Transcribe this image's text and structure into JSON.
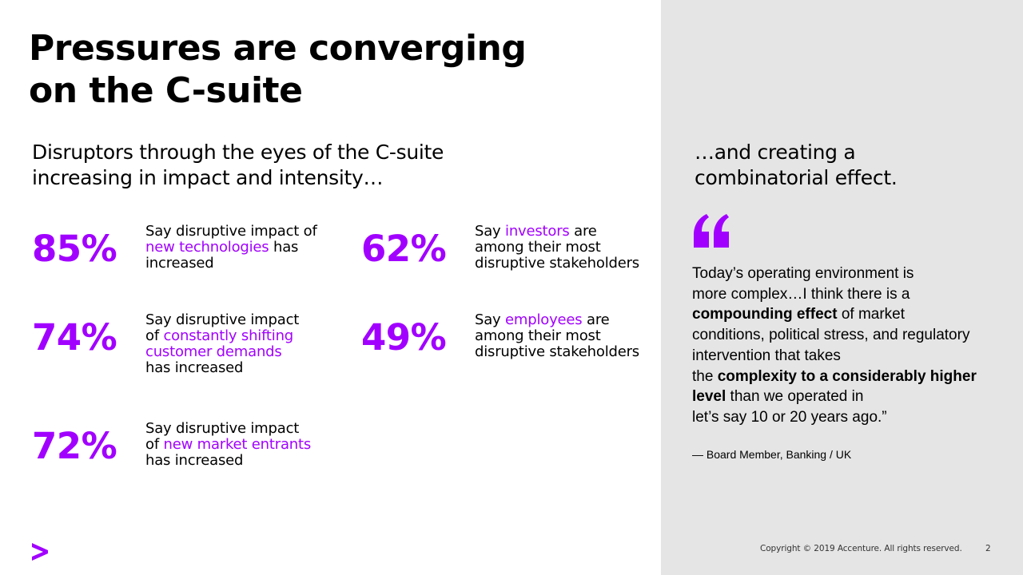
{
  "colors": {
    "accent": "#a100ff",
    "panel": "#e5e5e5"
  },
  "title": "Pressures are converging\non the C-suite",
  "subtitle": "Disruptors through the eyes of the C-suite\nincreasing in impact and intensity…",
  "stats": [
    {
      "pct": "85%",
      "pre": "Say disruptive impact of\n",
      "hl": "new technologies",
      "post": " has\nincreased"
    },
    {
      "pct": "74%",
      "pre": "Say disruptive impact\nof ",
      "hl": "constantly shifting\ncustomer demands",
      "post": "\nhas increased"
    },
    {
      "pct": "72%",
      "pre": "Say disruptive impact\nof ",
      "hl": "new market entrants",
      "post": "\nhas increased"
    },
    {
      "pct": "62%",
      "pre": "Say ",
      "hl": "investors",
      "post": " are\namong their most\ndisruptive stakeholders"
    },
    {
      "pct": "49%",
      "pre": "Say ",
      "hl": "employees",
      "post": " are\namong their most\ndisruptive stakeholders"
    }
  ],
  "right_heading": "…and creating a\ncombinatorial effect.",
  "quote": {
    "icon": "quote-mark-icon",
    "l1": "Today’s operating environment is",
    "l2": "more complex…I think there is a",
    "l3_b": "compounding effect",
    "l3_t": " of market",
    "l4": "conditions, political stress, and regulatory",
    "l5": "intervention that takes",
    "l6_t": "the ",
    "l6_b": "complexity to a considerably higher",
    "l7_b": "level",
    "l7_t": " than we operated in",
    "l8": "let’s say 10 or 20 years ago.”"
  },
  "attribution": "— Board Member, Banking / UK",
  "footer": {
    "copyright": "Copyright © 2019 Accenture. All rights reserved.",
    "page": "2",
    "logo_icon": "accenture-chevron-icon"
  }
}
